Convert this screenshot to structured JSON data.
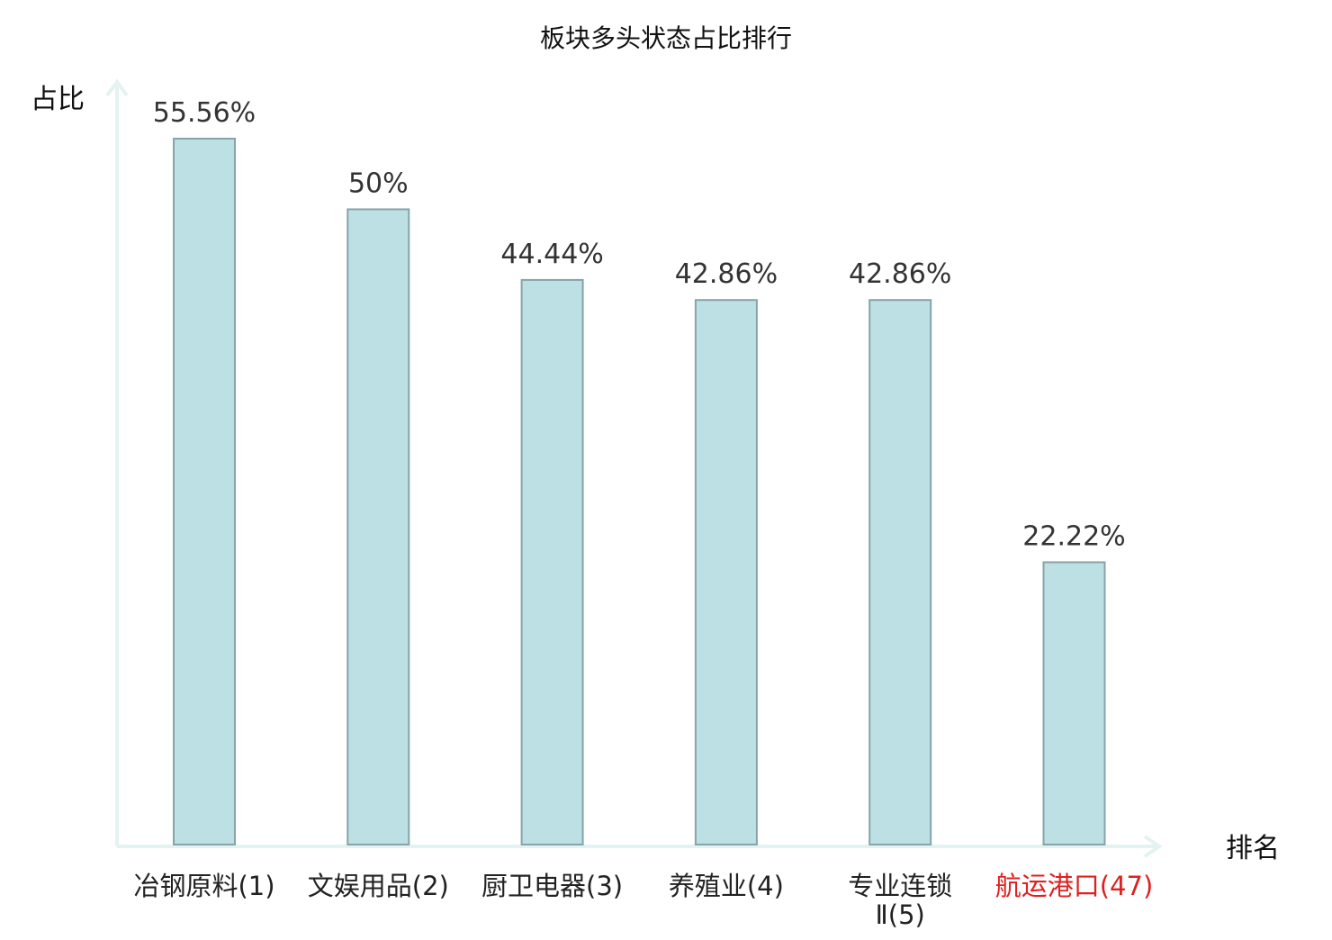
{
  "chart_data": {
    "type": "bar",
    "title": "板块多头状态占比排行",
    "ylabel": "占比",
    "xlabel": "排名",
    "ylim": [
      0,
      60
    ],
    "grid": false,
    "categories": [
      {
        "name": "冶钢原料",
        "rank": "(1)",
        "highlight": false
      },
      {
        "name": "文娱用品",
        "rank": "(2)",
        "highlight": false
      },
      {
        "name": "厨卫电器",
        "rank": "(3)",
        "highlight": false
      },
      {
        "name": "养殖业",
        "rank": "(4)",
        "highlight": false
      },
      {
        "name": "专业连锁Ⅱ",
        "rank": "(5)",
        "highlight": false
      },
      {
        "name": "航运港口",
        "rank": "(47)",
        "highlight": true
      }
    ],
    "values": [
      55.56,
      50,
      44.44,
      42.86,
      42.86,
      22.22
    ],
    "value_labels": [
      "55.56%",
      "50%",
      "44.44%",
      "42.86%",
      "42.86%",
      "22.22%"
    ],
    "colors": {
      "bar_fill": "#bce0e3",
      "bar_stroke": "#86a4a9",
      "axis": "#e3f3f1",
      "text": "#333333",
      "label_text": "#222222",
      "highlight": "#e02020"
    }
  }
}
